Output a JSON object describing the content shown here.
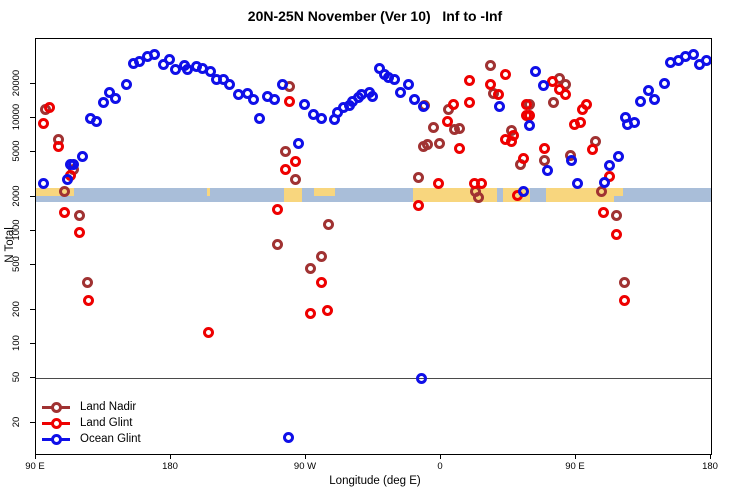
{
  "chart_data": {
    "type": "scatter",
    "title": "20N-25N November (Ver 10)   Inf to -Inf",
    "xlabel": "Longitude (deg E)",
    "ylabel": "N Total",
    "y_scale": "log",
    "x_axis_span_deg": 450,
    "x_ticks": [
      {
        "deg": 0,
        "label": "90 E"
      },
      {
        "deg": 90,
        "label": "180"
      },
      {
        "deg": 180,
        "label": "90 W"
      },
      {
        "deg": 270,
        "label": "0"
      },
      {
        "deg": 360,
        "label": "90 E"
      },
      {
        "deg": 450,
        "label": "180"
      }
    ],
    "y_ticks": [
      20000,
      10000,
      5000,
      2000,
      1000,
      500,
      200,
      100,
      50,
      20
    ],
    "ref_line_n": 50,
    "colors": {
      "land_nadir": "#A03232",
      "land_glint": "#EE0000",
      "ocean_glint": "#0F0FE8",
      "map_land": "#F8D67E",
      "map_ocean": "#A9BED9",
      "ref_line": "#4a4a4a",
      "axis": "#000000"
    },
    "map_strip": {
      "n_center": 2000,
      "segments": [
        {
          "from_deg": 0,
          "to_deg": 25,
          "surface": "coast"
        },
        {
          "from_deg": 25,
          "to_deg": 114,
          "surface": "ocean"
        },
        {
          "from_deg": 114,
          "to_deg": 116,
          "surface": "coast"
        },
        {
          "from_deg": 116,
          "to_deg": 165,
          "surface": "ocean"
        },
        {
          "from_deg": 165,
          "to_deg": 177,
          "surface": "land"
        },
        {
          "from_deg": 177,
          "to_deg": 185,
          "surface": "ocean"
        },
        {
          "from_deg": 185,
          "to_deg": 199,
          "surface": "coast"
        },
        {
          "from_deg": 199,
          "to_deg": 251,
          "surface": "ocean"
        },
        {
          "from_deg": 251,
          "to_deg": 307,
          "surface": "land"
        },
        {
          "from_deg": 307,
          "to_deg": 311,
          "surface": "ocean"
        },
        {
          "from_deg": 311,
          "to_deg": 329,
          "surface": "land"
        },
        {
          "from_deg": 329,
          "to_deg": 340,
          "surface": "ocean"
        },
        {
          "from_deg": 340,
          "to_deg": 385,
          "surface": "land"
        },
        {
          "from_deg": 385,
          "to_deg": 391,
          "surface": "coast"
        },
        {
          "from_deg": 391,
          "to_deg": 450,
          "surface": "ocean"
        }
      ]
    },
    "legend": {
      "position": "bottom-left",
      "entries": [
        "Land Nadir",
        "Land Glint",
        "Ocean Glint"
      ]
    },
    "series": [
      {
        "name": "Land Nadir",
        "color_key": "land_nadir",
        "points": [
          [
            6,
            11800
          ],
          [
            15,
            6400
          ],
          [
            25,
            3490
          ],
          [
            19,
            2260
          ],
          [
            29,
            1360
          ],
          [
            34,
            350
          ],
          [
            169,
            18900
          ],
          [
            166,
            5100
          ],
          [
            173,
            2830
          ],
          [
            195,
            1140
          ],
          [
            161,
            766
          ],
          [
            190,
            590
          ],
          [
            183,
            470
          ],
          [
            259,
            12800
          ],
          [
            303,
            28900
          ],
          [
            305,
            16400
          ],
          [
            275,
            12000
          ],
          [
            279,
            7900
          ],
          [
            282,
            8100
          ],
          [
            265,
            8300
          ],
          [
            269,
            5940
          ],
          [
            258,
            5550
          ],
          [
            261,
            5800
          ],
          [
            255,
            3000
          ],
          [
            293,
            2260
          ],
          [
            295,
            2000
          ],
          [
            323,
            3840
          ],
          [
            317,
            7700
          ],
          [
            329,
            13300
          ],
          [
            339,
            4250
          ],
          [
            345,
            13600
          ],
          [
            349,
            22200
          ],
          [
            353,
            20000
          ],
          [
            356,
            4700
          ],
          [
            373,
            6250
          ],
          [
            377,
            2220
          ],
          [
            387,
            1360
          ],
          [
            392,
            350
          ]
        ]
      },
      {
        "name": "Land Glint",
        "color_key": "land_glint",
        "points": [
          [
            9,
            12500
          ],
          [
            5,
            9000
          ],
          [
            15,
            5550
          ],
          [
            23,
            3130
          ],
          [
            19,
            1470
          ],
          [
            29,
            980
          ],
          [
            35,
            245
          ],
          [
            115,
            127
          ],
          [
            161,
            1560
          ],
          [
            166,
            3470
          ],
          [
            169,
            14100
          ],
          [
            173,
            4100
          ],
          [
            190,
            350
          ],
          [
            183,
            186
          ],
          [
            194,
            198
          ],
          [
            255,
            1670
          ],
          [
            268,
            2660
          ],
          [
            292,
            2630
          ],
          [
            297,
            2630
          ],
          [
            278,
            13100
          ],
          [
            289,
            13600
          ],
          [
            274,
            9400
          ],
          [
            282,
            5400
          ],
          [
            289,
            21400
          ],
          [
            303,
            19700
          ],
          [
            313,
            24200
          ],
          [
            308,
            16100
          ],
          [
            327,
            13100
          ],
          [
            327,
            10500
          ],
          [
            318,
            7070
          ],
          [
            317,
            6250
          ],
          [
            339,
            5400
          ],
          [
            325,
            4420
          ],
          [
            313,
            6520
          ],
          [
            329,
            10600
          ],
          [
            321,
            2080
          ],
          [
            344,
            21000
          ],
          [
            349,
            17900
          ],
          [
            353,
            16100
          ],
          [
            364,
            12000
          ],
          [
            367,
            13300
          ],
          [
            359,
            8800
          ],
          [
            363,
            9200
          ],
          [
            371,
            5300
          ],
          [
            378,
            1450
          ],
          [
            382,
            3060
          ],
          [
            387,
            940
          ],
          [
            392,
            245
          ]
        ]
      },
      {
        "name": "Ocean Glint",
        "color_key": "ocean_glint",
        "points": [
          [
            5,
            2660
          ],
          [
            21,
            2830
          ],
          [
            23,
            3840
          ],
          [
            25,
            3900
          ],
          [
            31,
            4610
          ],
          [
            36,
            10000
          ],
          [
            40,
            9400
          ],
          [
            45,
            13600
          ],
          [
            49,
            16800
          ],
          [
            53,
            14800
          ],
          [
            60,
            19700
          ],
          [
            65,
            30600
          ],
          [
            69,
            31900
          ],
          [
            74,
            35000
          ],
          [
            79,
            36500
          ],
          [
            85,
            30000
          ],
          [
            89,
            33000
          ],
          [
            93,
            26700
          ],
          [
            99,
            28900
          ],
          [
            101,
            26700
          ],
          [
            107,
            28300
          ],
          [
            111,
            27200
          ],
          [
            116,
            25600
          ],
          [
            120,
            21900
          ],
          [
            125,
            21900
          ],
          [
            129,
            19700
          ],
          [
            135,
            16100
          ],
          [
            141,
            16400
          ],
          [
            145,
            14500
          ],
          [
            149,
            10000
          ],
          [
            154,
            15400
          ],
          [
            159,
            14500
          ],
          [
            164,
            19700
          ],
          [
            175,
            5940
          ],
          [
            179,
            13300
          ],
          [
            185,
            10800
          ],
          [
            190,
            10000
          ],
          [
            199,
            9800
          ],
          [
            201,
            11300
          ],
          [
            205,
            12300
          ],
          [
            209,
            12800
          ],
          [
            211,
            13900
          ],
          [
            215,
            15100
          ],
          [
            217,
            16100
          ],
          [
            222,
            16800
          ],
          [
            224,
            15400
          ],
          [
            229,
            27300
          ],
          [
            232,
            24200
          ],
          [
            235,
            22800
          ],
          [
            239,
            21900
          ],
          [
            243,
            16800
          ],
          [
            248,
            20000
          ],
          [
            252,
            14500
          ],
          [
            258,
            12600
          ],
          [
            257,
            50
          ],
          [
            168,
            15
          ],
          [
            309,
            12600
          ],
          [
            325,
            2260
          ],
          [
            329,
            8600
          ],
          [
            333,
            25900
          ],
          [
            338,
            19400
          ],
          [
            341,
            3400
          ],
          [
            357,
            4250
          ],
          [
            361,
            2660
          ],
          [
            379,
            2710
          ],
          [
            382,
            3770
          ],
          [
            388,
            4610
          ],
          [
            393,
            10200
          ],
          [
            394,
            8800
          ],
          [
            399,
            9200
          ],
          [
            403,
            13900
          ],
          [
            408,
            17400
          ],
          [
            412,
            14500
          ],
          [
            419,
            20400
          ],
          [
            423,
            30900
          ],
          [
            428,
            32100
          ],
          [
            433,
            35000
          ],
          [
            438,
            36500
          ],
          [
            442,
            29800
          ],
          [
            447,
            32100
          ]
        ]
      }
    ]
  }
}
